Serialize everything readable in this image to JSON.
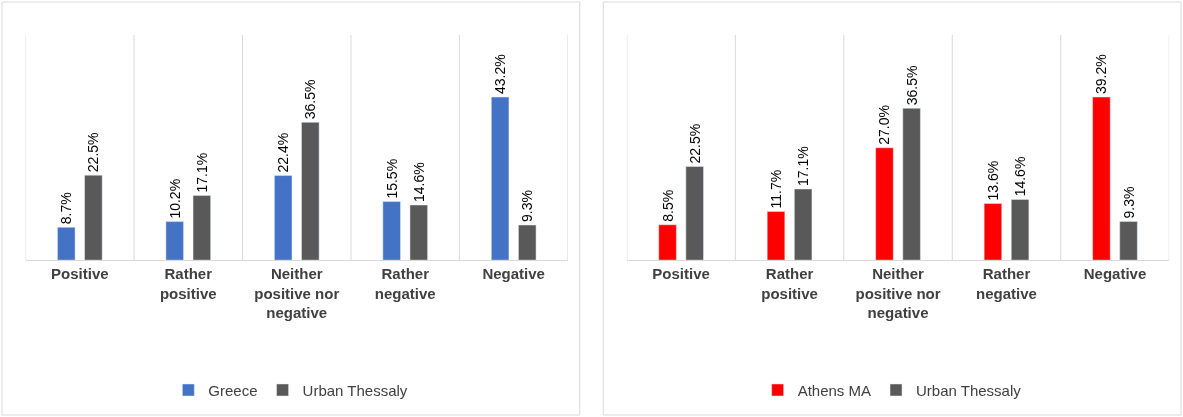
{
  "chart_data": [
    {
      "type": "bar",
      "categories": [
        "Positive",
        "Rather positive",
        "Neither positive nor negative",
        "Rather negative",
        "Negative"
      ],
      "grid": "x",
      "legend": "bottom",
      "series": [
        {
          "name": "Greece",
          "color": "#4472c4",
          "values": [
            8.7,
            10.2,
            22.4,
            15.5,
            43.2
          ],
          "value_labels": [
            "8.7%",
            "10.2%",
            "22.4%",
            "15.5%",
            "43.2%"
          ]
        },
        {
          "name": "Urban Thessaly",
          "color": "#595959",
          "values": [
            22.5,
            17.1,
            36.5,
            14.6,
            9.3
          ],
          "value_labels": [
            "22.5%",
            "17.1%",
            "36.5%",
            "14.6%",
            "9.3%"
          ]
        }
      ]
    },
    {
      "type": "bar",
      "categories": [
        "Positive",
        "Rather positive",
        "Neither positive nor negative",
        "Rather negative",
        "Negative"
      ],
      "grid": "x",
      "legend": "bottom",
      "series": [
        {
          "name": "Athens MA",
          "color": "#ff0000",
          "values": [
            8.5,
            11.7,
            27.0,
            13.6,
            39.2
          ],
          "value_labels": [
            "8.5%",
            "11.7%",
            "27.0%",
            "13.6%",
            "39.2%"
          ]
        },
        {
          "name": "Urban Thessaly",
          "color": "#595959",
          "values": [
            22.5,
            17.1,
            36.5,
            14.6,
            9.3
          ],
          "value_labels": [
            "22.5%",
            "17.1%",
            "36.5%",
            "14.6%",
            "9.3%"
          ]
        }
      ]
    }
  ]
}
